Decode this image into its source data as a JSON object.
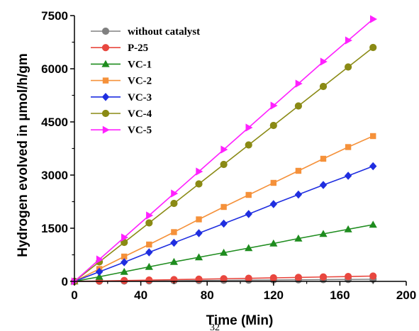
{
  "chart_data": {
    "type": "line",
    "title": "",
    "xlabel": "Time (Min)",
    "ylabel": "Hydrogen evolved in µmol/h/gm",
    "xlim": [
      0,
      200
    ],
    "ylim": [
      0,
      7500
    ],
    "xticks": [
      0,
      40,
      80,
      120,
      160,
      200
    ],
    "yticks": [
      0,
      1500,
      3000,
      4500,
      6000,
      7500
    ],
    "grid": false,
    "legend": "top-left",
    "stray_text": "32",
    "x": [
      0,
      15,
      30,
      45,
      60,
      75,
      90,
      105,
      120,
      135,
      150,
      165,
      180
    ],
    "series": [
      {
        "name": "without catalyst",
        "color": "#808080",
        "marker": "circle",
        "values": [
          0,
          5,
          10,
          15,
          20,
          25,
          30,
          35,
          40,
          45,
          50,
          55,
          60
        ]
      },
      {
        "name": "P-25",
        "color": "#e8473f",
        "marker": "circle",
        "values": [
          0,
          12,
          25,
          37,
          50,
          62,
          75,
          87,
          100,
          112,
          125,
          137,
          150
        ]
      },
      {
        "name": "VC-1",
        "color": "#1e8c1e",
        "marker": "triangle-up",
        "values": [
          0,
          130,
          270,
          410,
          550,
          680,
          810,
          940,
          1070,
          1210,
          1340,
          1470,
          1600
        ]
      },
      {
        "name": "VC-2",
        "color": "#f5913a",
        "marker": "square",
        "values": [
          0,
          350,
          700,
          1040,
          1390,
          1750,
          2100,
          2440,
          2780,
          3120,
          3460,
          3790,
          4100
        ]
      },
      {
        "name": "VC-3",
        "color": "#1f2ee0",
        "marker": "diamond",
        "values": [
          0,
          270,
          540,
          820,
          1090,
          1360,
          1630,
          1900,
          2180,
          2450,
          2720,
          2980,
          3250
        ]
      },
      {
        "name": "VC-4",
        "color": "#8a8a14",
        "marker": "circle",
        "values": [
          0,
          550,
          1100,
          1650,
          2200,
          2750,
          3300,
          3850,
          4400,
          4950,
          5500,
          6050,
          6600
        ]
      },
      {
        "name": "VC-5",
        "color": "#ff21ff",
        "marker": "triangle-right",
        "values": [
          0,
          620,
          1240,
          1860,
          2480,
          3100,
          3720,
          4340,
          4960,
          5580,
          6200,
          6800,
          7400
        ]
      }
    ]
  }
}
